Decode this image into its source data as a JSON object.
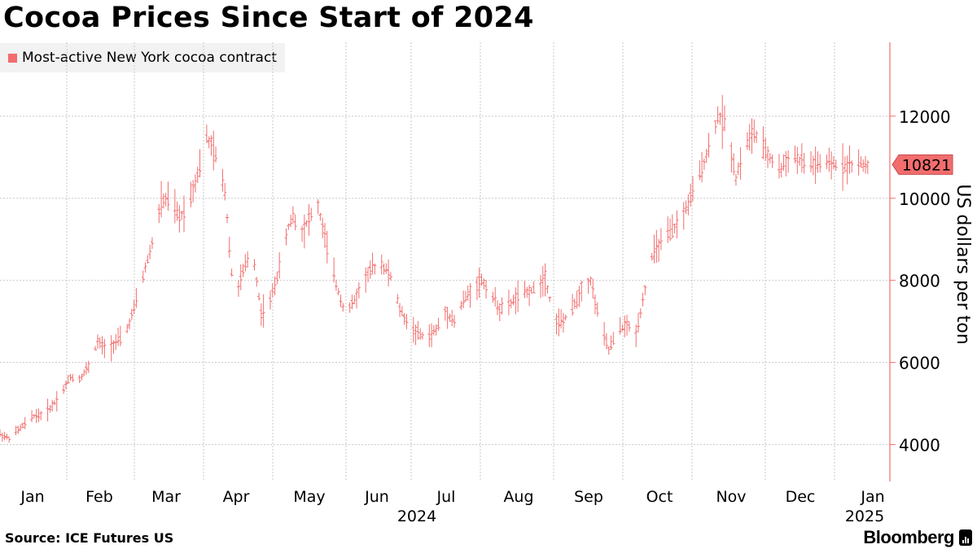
{
  "title": "Cocoa Prices Since Start of 2024",
  "legend": {
    "label": "Most-active New York cocoa contract",
    "color": "#f26d6d"
  },
  "source": "Source: ICE Futures US",
  "brand": "Bloomberg",
  "colors": {
    "series": "#f26d6d",
    "axis": "#f26d6d",
    "grid": "#c8c8c8",
    "text": "#000000"
  },
  "chart_data": {
    "type": "line",
    "style": "ohlc-bars",
    "title": "Cocoa Prices Since Start of 2024",
    "ylabel": "US dollars per ton",
    "xlabel": "",
    "ylim": [
      3100,
      13800
    ],
    "yticks": [
      4000,
      6000,
      8000,
      10000,
      12000
    ],
    "ytick_labels": [
      "4000",
      "6000",
      "8000",
      "10000",
      "12000"
    ],
    "x_axis": {
      "months": [
        "Jan",
        "Feb",
        "Mar",
        "Apr",
        "May",
        "Jun",
        "Jul",
        "Aug",
        "Sep",
        "Oct",
        "Nov",
        "Dec",
        "Jan"
      ],
      "years": [
        "2024",
        "2025"
      ]
    },
    "last_value": 10821,
    "last_value_label": "10821",
    "grid": true,
    "series": [
      {
        "name": "Most-active New York cocoa contract",
        "x_days": [
          0,
          4,
          8,
          12,
          15,
          19,
          23,
          27,
          31,
          35,
          39,
          43,
          47,
          51,
          55,
          59,
          63,
          67,
          71,
          75,
          79,
          83,
          87,
          91,
          95,
          99,
          103,
          107,
          111,
          115,
          119,
          123,
          127,
          129,
          132,
          136,
          140,
          144,
          148,
          152,
          156,
          160,
          164,
          168,
          172,
          176,
          180,
          184,
          188,
          192,
          196,
          197,
          200,
          204,
          208,
          212,
          216,
          220,
          224,
          228,
          232,
          236,
          240,
          244,
          248,
          252,
          256,
          260,
          264,
          268,
          272,
          276,
          280,
          284,
          285,
          288,
          292,
          296,
          300,
          304,
          308,
          312,
          316,
          320,
          324,
          328,
          332,
          336,
          340,
          344,
          348,
          352,
          356,
          360,
          364,
          368,
          372,
          376,
          380,
          384,
          386,
          388,
          390
        ],
        "values": [
          4250,
          4150,
          4350,
          4550,
          4700,
          4720,
          4950,
          5250,
          5650,
          5600,
          5900,
          6500,
          6300,
          6500,
          6650,
          7300,
          8100,
          8900,
          9900,
          10000,
          9500,
          9900,
          10600,
          11500,
          11000,
          10200,
          7500,
          8200,
          8800,
          7200,
          7500,
          8300,
          9300,
          9600,
          9100,
          9500,
          9800,
          8800,
          7900,
          7200,
          7500,
          8000,
          8300,
          8400,
          8100,
          7300,
          6900,
          6700,
          6600,
          6800,
          7200,
          7200,
          7000,
          7500,
          7800,
          8000,
          7700,
          7300,
          7400,
          7600,
          7700,
          7800,
          8100,
          7000,
          7000,
          7300,
          7800,
          8000,
          7000,
          6300,
          6800,
          6900,
          6700,
          7800,
          8300,
          8700,
          9000,
          9200,
          9500,
          10000,
          10600,
          11200,
          12000,
          11800,
          10500,
          11300,
          11600,
          11200,
          10900,
          10700,
          11100,
          10900,
          10821,
          10821,
          10821,
          10821,
          10821,
          10821,
          10821,
          10821,
          10821,
          10821,
          10821
        ]
      }
    ]
  }
}
